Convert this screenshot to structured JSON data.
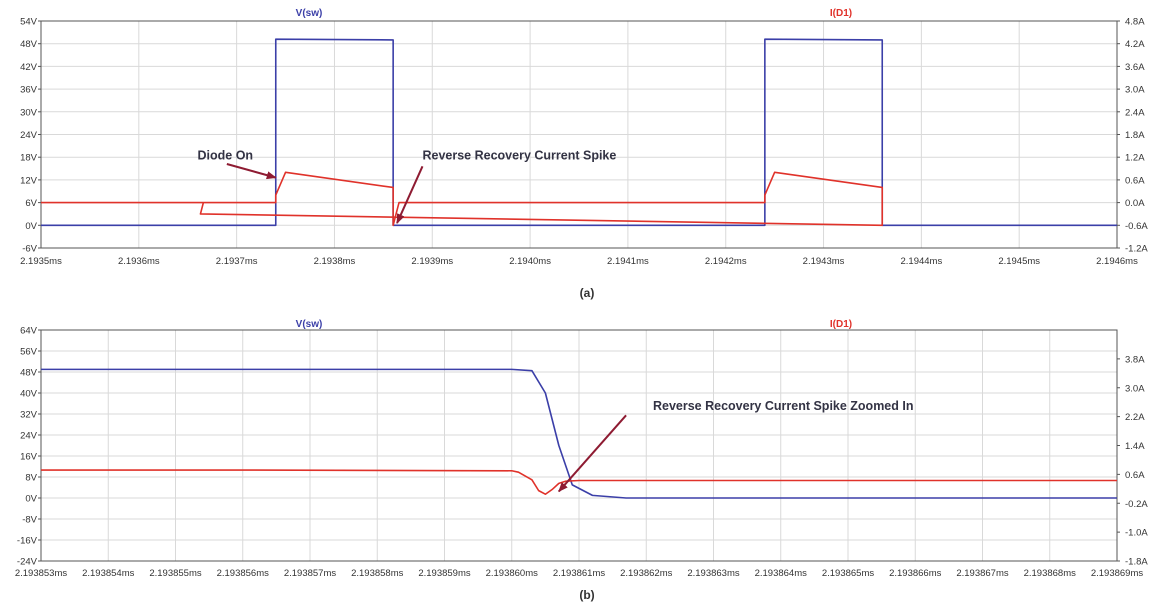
{
  "colors": {
    "vsw": "#3b3fa8",
    "id1": "#e0322a",
    "arrow": "#8e1b32",
    "grid": "#d9d9d9"
  },
  "chart_data": [
    {
      "type": "line",
      "caption": "(a)",
      "grid": true,
      "xlim": [
        2.1935,
        2.1946
      ],
      "x_ticks": [
        "2.1935ms",
        "2.1936ms",
        "2.1937ms",
        "2.1938ms",
        "2.1939ms",
        "2.1940ms",
        "2.1941ms",
        "2.1942ms",
        "2.1943ms",
        "2.1944ms",
        "2.1945ms",
        "2.1946ms"
      ],
      "y_left": {
        "lim": [
          -6,
          54
        ],
        "ticks": [
          "-6V",
          "0V",
          "6V",
          "12V",
          "18V",
          "24V",
          "30V",
          "36V",
          "42V",
          "48V",
          "54V"
        ]
      },
      "y_right": {
        "lim": [
          -1.2,
          4.8
        ],
        "ticks": [
          "-1.2A",
          "-0.6A",
          "0.0A",
          "0.6A",
          "1.2A",
          "1.8A",
          "2.4A",
          "3.0A",
          "3.6A",
          "4.2A",
          "4.8A"
        ]
      },
      "series": [
        {
          "name": "V(sw)",
          "axis": "left",
          "unit": "V",
          "points": [
            [
              2.1935,
              0
            ],
            [
              2.19374,
              0
            ],
            [
              2.19374,
              49.2
            ],
            [
              2.19386,
              49.0
            ],
            [
              2.19386,
              0
            ],
            [
              2.19424,
              0
            ],
            [
              2.19424,
              49.2
            ],
            [
              2.19436,
              49.0
            ],
            [
              2.19436,
              0
            ],
            [
              2.1946,
              0
            ]
          ]
        },
        {
          "name": "I(D1)",
          "axis": "right",
          "unit": "A",
          "points": [
            [
              2.1935,
              0.0
            ],
            [
              2.19374,
              0.0
            ],
            [
              2.19374,
              0.2
            ],
            [
              2.19375,
              0.8
            ],
            [
              2.19386,
              0.4
            ],
            [
              2.19386,
              -0.6
            ],
            [
              2.193863,
              -0.3
            ],
            [
              2.193866,
              0.0
            ],
            [
              2.19424,
              0.0
            ],
            [
              2.19424,
              0.2
            ],
            [
              2.19425,
              0.8
            ],
            [
              2.19436,
              0.4
            ],
            [
              2.19436,
              -0.6
            ],
            [
              2.193663,
              -0.3
            ],
            [
              2.193666,
              0.0
            ]
          ]
        }
      ],
      "annotations": [
        {
          "text": "Diode On",
          "x": 2.19366,
          "y": 17.4,
          "arrow_to": [
            2.19374,
            12.6
          ],
          "arrow_from": [
            2.19369,
            16.2
          ]
        },
        {
          "text": "Reverse Recovery Current Spike",
          "x": 2.19389,
          "y": 17.4,
          "arrow_to": [
            2.193864,
            0.6
          ],
          "arrow_from": [
            2.19389,
            15.6
          ]
        }
      ]
    },
    {
      "type": "line",
      "caption": "(b)",
      "grid": true,
      "xlim": [
        2.193853,
        2.193869
      ],
      "x_ticks": [
        "2.193853ms",
        "2.193854ms",
        "2.193855ms",
        "2.193856ms",
        "2.193857ms",
        "2.193858ms",
        "2.193859ms",
        "2.193860ms",
        "2.193861ms",
        "2.193862ms",
        "2.193863ms",
        "2.193864ms",
        "2.193865ms",
        "2.193866ms",
        "2.193867ms",
        "2.193868ms",
        "2.193869ms"
      ],
      "y_left": {
        "lim": [
          -24,
          64
        ],
        "ticks": [
          "-24V",
          "-16V",
          "-8V",
          "0V",
          "8V",
          "16V",
          "24V",
          "32V",
          "40V",
          "48V",
          "56V",
          "64V"
        ]
      },
      "y_right": {
        "lim": [
          -1.8,
          4.6
        ],
        "ticks": [
          "-1.8A",
          "-1.0A",
          "-0.2A",
          "0.6A",
          "1.4A",
          "2.2A",
          "3.0A",
          "3.8A"
        ]
      },
      "series": [
        {
          "name": "V(sw)",
          "axis": "left",
          "unit": "V",
          "points": [
            [
              2.193853,
              49
            ],
            [
              2.19386,
              49
            ],
            [
              2.1938603,
              48.5
            ],
            [
              2.1938605,
              40
            ],
            [
              2.1938607,
              20
            ],
            [
              2.1938609,
              5
            ],
            [
              2.1938612,
              1
            ],
            [
              2.1938617,
              0
            ],
            [
              2.193869,
              0
            ]
          ]
        },
        {
          "name": "I(D1)",
          "axis": "right",
          "unit": "A",
          "points": [
            [
              2.193853,
              0.72
            ],
            [
              2.193856,
              0.72
            ],
            [
              2.19386,
              0.7
            ],
            [
              2.1938601,
              0.66
            ],
            [
              2.1938603,
              0.45
            ],
            [
              2.1938604,
              0.15
            ],
            [
              2.1938605,
              0.05
            ],
            [
              2.1938606,
              0.18
            ],
            [
              2.1938607,
              0.35
            ],
            [
              2.1938608,
              0.41
            ],
            [
              2.193861,
              0.43
            ],
            [
              2.193869,
              0.43
            ]
          ]
        }
      ],
      "annotations": [
        {
          "text": "Reverse Recovery Current Spike Zoomed In",
          "x": 2.1938621,
          "y": 33.5,
          "arrow_to": [
            2.1938607,
            2.5
          ],
          "arrow_from": [
            2.1938617,
            31.5
          ]
        }
      ]
    }
  ]
}
